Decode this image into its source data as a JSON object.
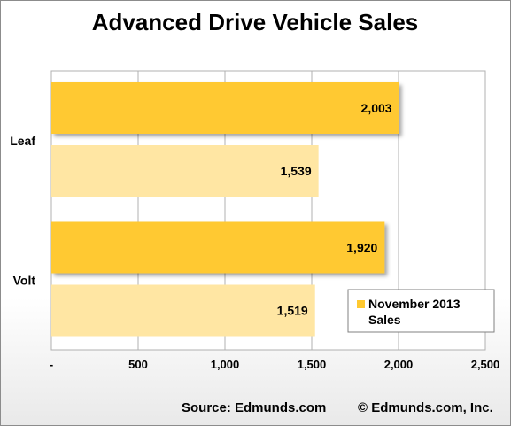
{
  "chart_data": {
    "type": "bar",
    "orientation": "horizontal",
    "title": "Advanced Drive Vehicle Sales",
    "categories": [
      "Leaf",
      "Volt"
    ],
    "series": [
      {
        "name": "November 2013 Sales",
        "values": [
          2003,
          1920
        ],
        "data_labels": [
          "2,003",
          "1,920"
        ],
        "color": "#FFC930"
      },
      {
        "values": [
          1539,
          1519
        ],
        "data_labels": [
          "1,539",
          "1,519"
        ],
        "color": "#FFE6A3"
      }
    ],
    "xlim": [
      0,
      2500
    ],
    "x_ticks": [
      0,
      500,
      1000,
      1500,
      2000,
      2500
    ],
    "x_tick_labels": [
      "-",
      "500",
      "1,000",
      "1,500",
      "2,000",
      "2,500"
    ],
    "grid": "vertical",
    "legend": {
      "position": "bottom-right",
      "label_lines": [
        "November 2013",
        "Sales"
      ]
    }
  },
  "footer": {
    "source": "Source: Edmunds.com",
    "copyright": "© Edmunds.com, Inc."
  }
}
